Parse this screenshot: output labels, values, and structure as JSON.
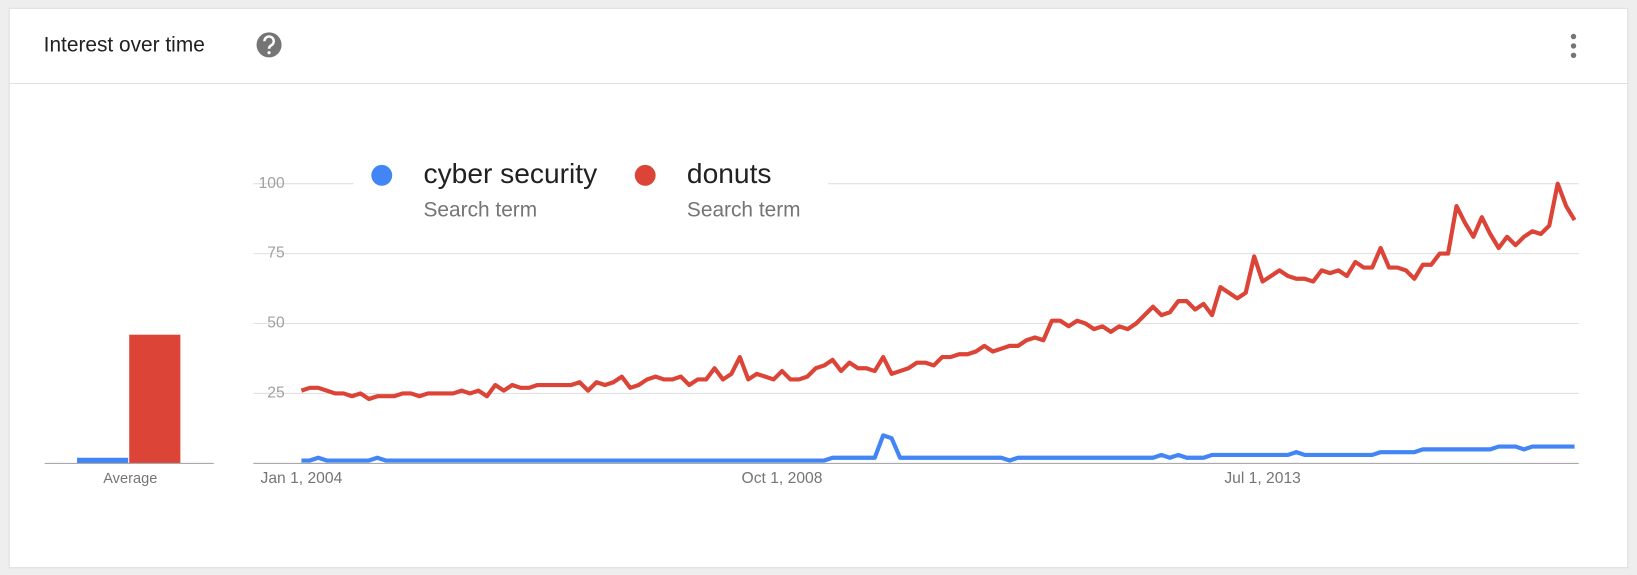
{
  "header": {
    "title": "Interest over time"
  },
  "chart_data": [
    {
      "type": "bar",
      "xlabel": "Average",
      "values": [
        2,
        46
      ],
      "colors": [
        "#4285f4",
        "#db4437"
      ],
      "ylim": [
        0,
        100
      ]
    },
    {
      "type": "line",
      "categories": [
        "Jan 1, 2004",
        null,
        null,
        null,
        null,
        null,
        null,
        null,
        null,
        null,
        null,
        null,
        null,
        null,
        null,
        null,
        null,
        null,
        null,
        null,
        null,
        null,
        null,
        null,
        null,
        null,
        null,
        null,
        null,
        null,
        null,
        null,
        null,
        null,
        null,
        null,
        null,
        null,
        null,
        null,
        null,
        null,
        null,
        null,
        null,
        null,
        null,
        null,
        null,
        null,
        null,
        null,
        null,
        null,
        null,
        null,
        null,
        "Oct 1, 2008",
        null,
        null,
        null,
        null,
        null,
        null,
        null,
        null,
        null,
        null,
        null,
        null,
        null,
        null,
        null,
        null,
        null,
        null,
        null,
        null,
        null,
        null,
        null,
        null,
        null,
        null,
        null,
        null,
        null,
        null,
        null,
        null,
        null,
        null,
        null,
        null,
        null,
        null,
        null,
        null,
        null,
        null,
        null,
        null,
        null,
        null,
        null,
        null,
        null,
        null,
        null,
        null,
        null,
        null,
        null,
        null,
        "Jul 1, 2013",
        null,
        null,
        null,
        null,
        null,
        null,
        null,
        null,
        null,
        null,
        null,
        null,
        null,
        null,
        null,
        null,
        null,
        null,
        null,
        null,
        null,
        null,
        null,
        null,
        null,
        null,
        null,
        null,
        null,
        null,
        null,
        null,
        null,
        null,
        null,
        null,
        null
      ],
      "series": [
        {
          "name": "cyber security",
          "subtitle": "Search term",
          "color": "#4285f4",
          "values": [
            1,
            1,
            2,
            1,
            1,
            1,
            1,
            1,
            1,
            2,
            1,
            1,
            1,
            1,
            1,
            1,
            1,
            1,
            1,
            1,
            1,
            1,
            1,
            1,
            1,
            1,
            1,
            1,
            1,
            1,
            1,
            1,
            1,
            1,
            1,
            1,
            1,
            1,
            1,
            1,
            1,
            1,
            1,
            1,
            1,
            1,
            1,
            1,
            1,
            1,
            1,
            1,
            1,
            1,
            1,
            1,
            1,
            1,
            1,
            1,
            1,
            1,
            1,
            2,
            2,
            2,
            2,
            2,
            2,
            10,
            9,
            2,
            2,
            2,
            2,
            2,
            2,
            2,
            2,
            2,
            2,
            2,
            2,
            2,
            1,
            2,
            2,
            2,
            2,
            2,
            2,
            2,
            2,
            2,
            2,
            2,
            2,
            2,
            2,
            2,
            2,
            2,
            3,
            2,
            3,
            2,
            2,
            2,
            3,
            3,
            3,
            3,
            3,
            3,
            3,
            3,
            3,
            3,
            4,
            3,
            3,
            3,
            3,
            3,
            3,
            3,
            3,
            3,
            4,
            4,
            4,
            4,
            4,
            5,
            5,
            5,
            5,
            5,
            5,
            5,
            5,
            5,
            6,
            6,
            6,
            5,
            6,
            6,
            6,
            6,
            6,
            6
          ]
        },
        {
          "name": "donuts",
          "subtitle": "Search term",
          "color": "#db4437",
          "values": [
            26,
            27,
            27,
            26,
            25,
            25,
            24,
            25,
            23,
            24,
            24,
            24,
            25,
            25,
            24,
            25,
            25,
            25,
            25,
            26,
            25,
            26,
            24,
            28,
            26,
            28,
            27,
            27,
            28,
            28,
            28,
            28,
            28,
            29,
            26,
            29,
            28,
            29,
            31,
            27,
            28,
            30,
            31,
            30,
            30,
            31,
            28,
            30,
            30,
            34,
            30,
            32,
            38,
            30,
            32,
            31,
            30,
            33,
            30,
            30,
            31,
            34,
            35,
            37,
            33,
            36,
            34,
            34,
            33,
            38,
            32,
            33,
            34,
            36,
            36,
            35,
            38,
            38,
            39,
            39,
            40,
            42,
            40,
            41,
            42,
            42,
            44,
            45,
            44,
            51,
            51,
            49,
            51,
            50,
            48,
            49,
            47,
            49,
            48,
            50,
            53,
            56,
            53,
            54,
            58,
            58,
            55,
            57,
            53,
            63,
            61,
            59,
            61,
            74,
            65,
            67,
            69,
            67,
            66,
            66,
            65,
            69,
            68,
            69,
            67,
            72,
            70,
            70,
            77,
            70,
            70,
            69,
            66,
            71,
            71,
            75,
            75,
            92,
            86,
            81,
            88,
            82,
            77,
            81,
            78,
            81,
            83,
            82,
            85,
            100,
            92,
            87
          ]
        }
      ],
      "ylim": [
        0,
        100
      ],
      "yticks": [
        25,
        50,
        75,
        100
      ],
      "grid": true
    }
  ]
}
